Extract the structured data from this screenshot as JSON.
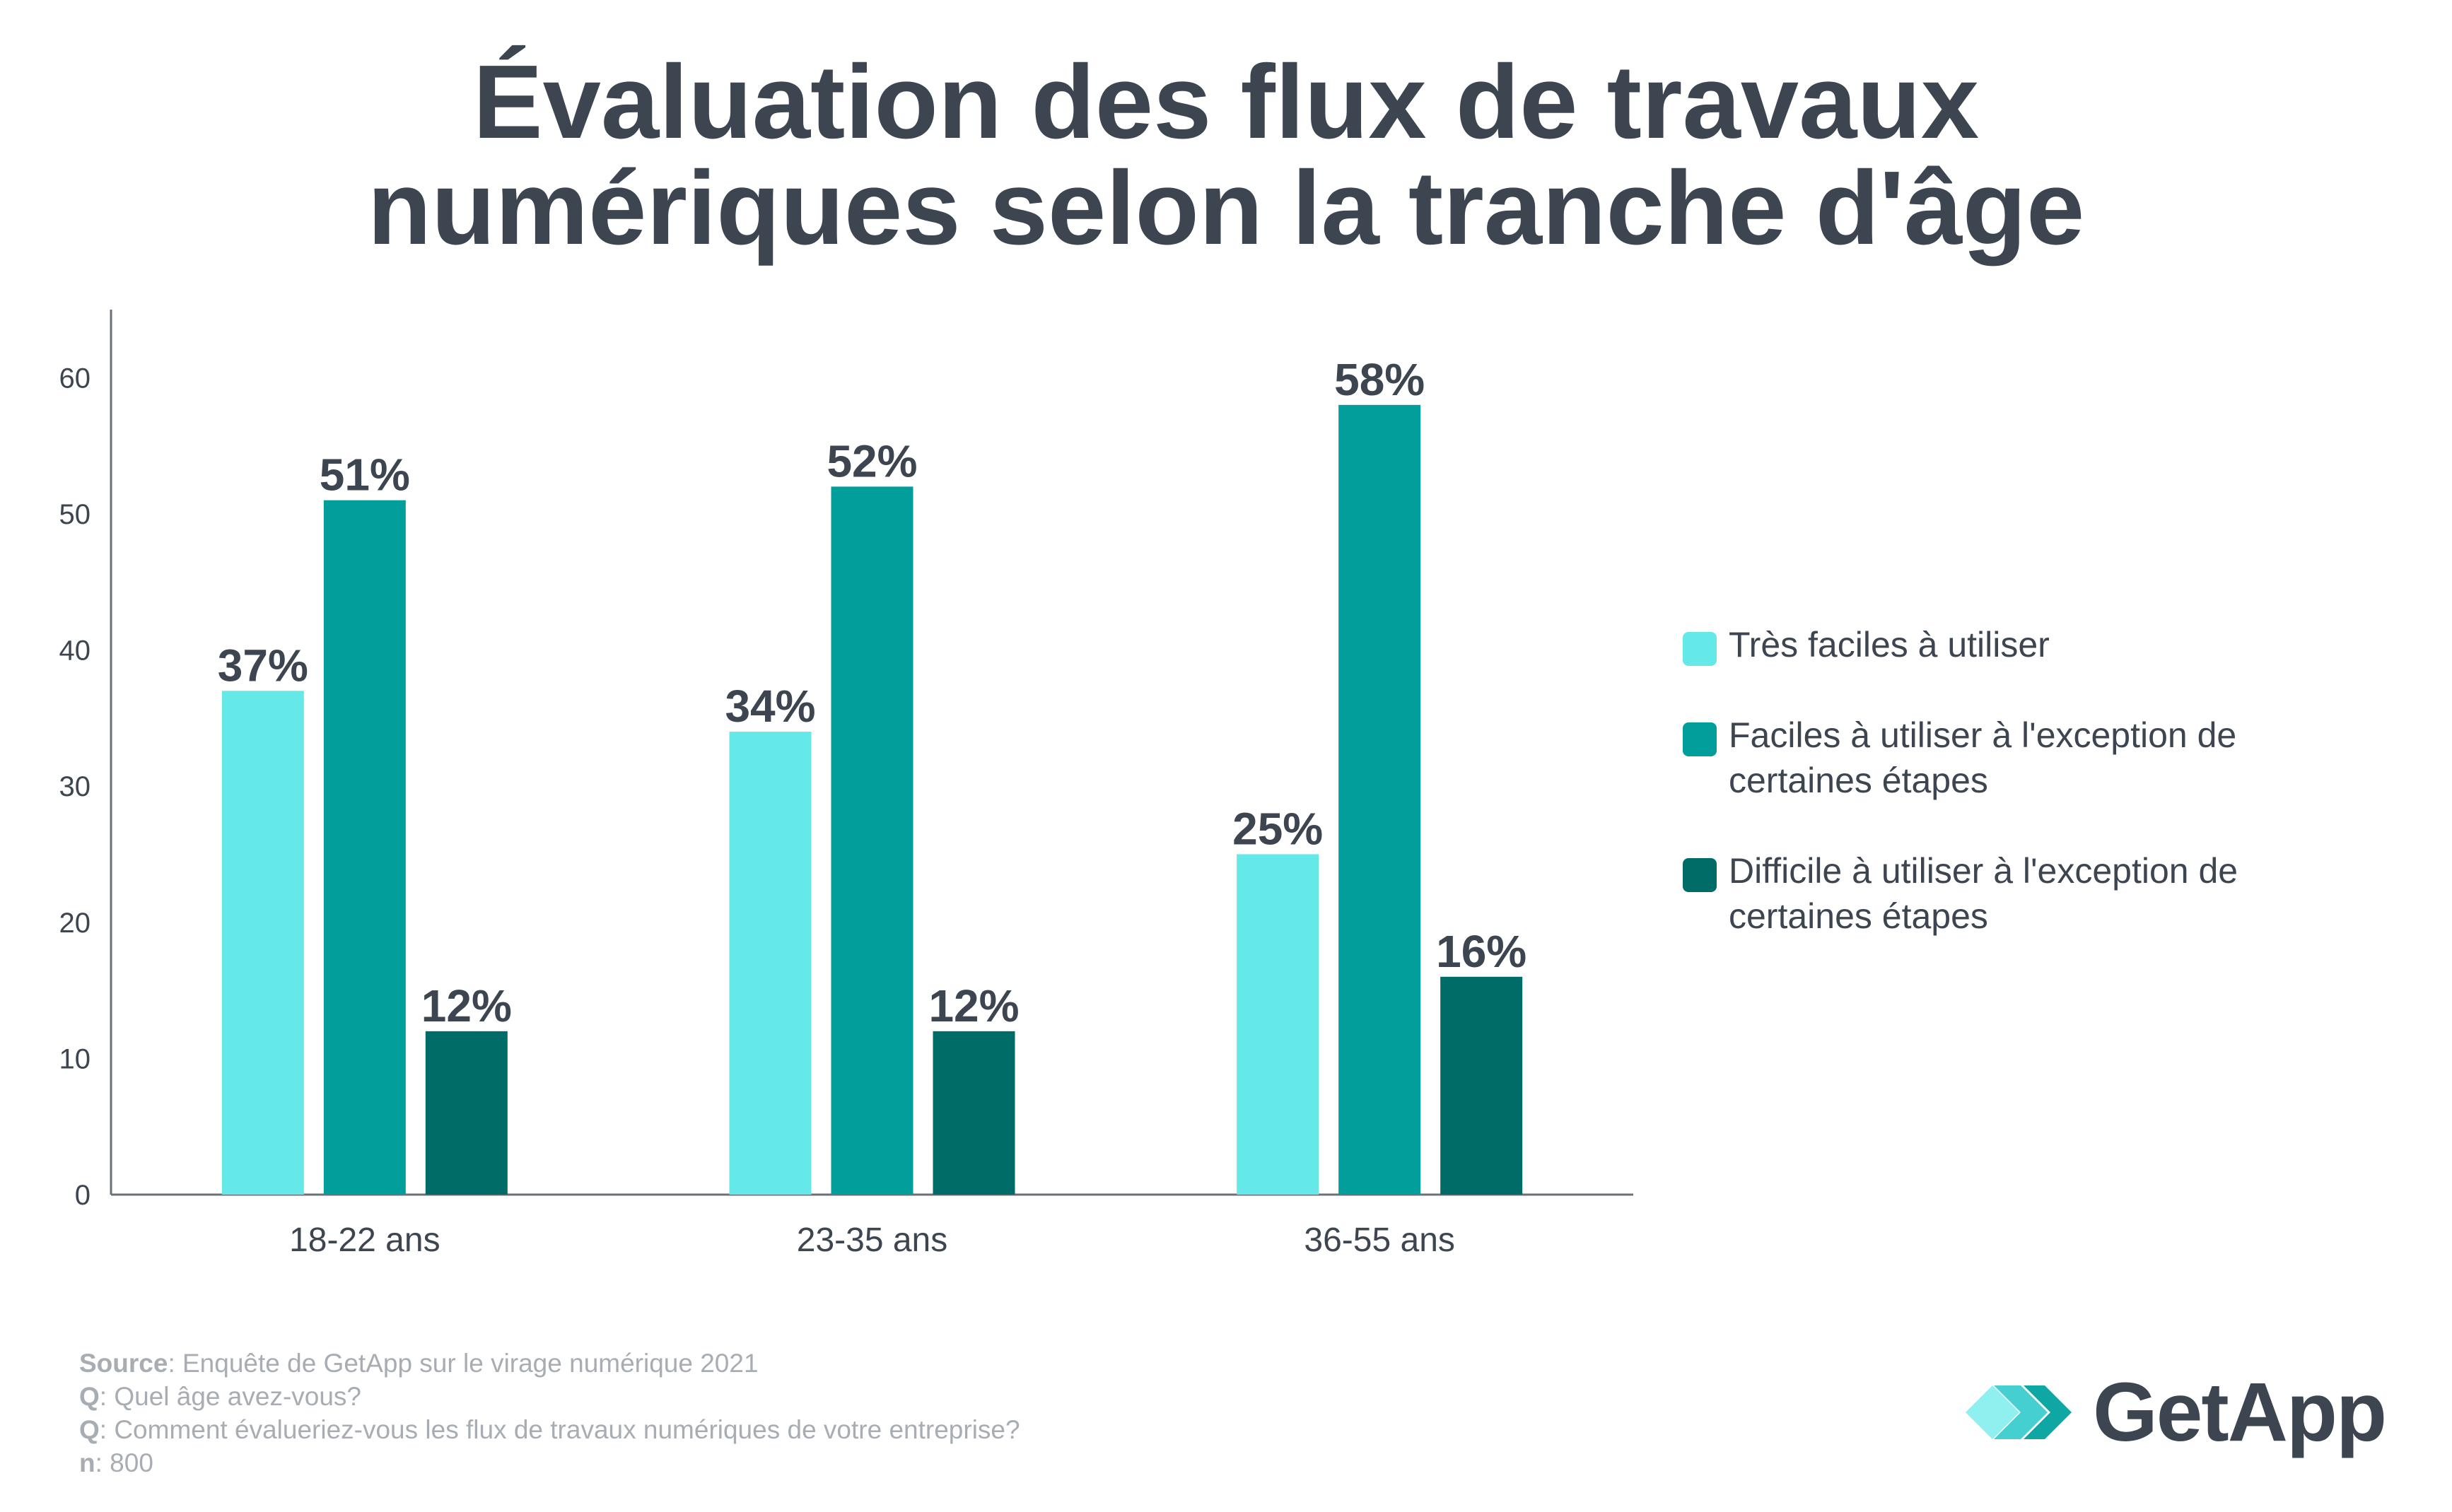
{
  "title": {
    "line1": "Évaluation des flux de travaux",
    "line2": "numériques selon la tranche d'âge"
  },
  "chart_data": {
    "type": "bar",
    "title": "Évaluation des flux de travaux numériques selon la tranche d'âge",
    "categories": [
      "18-22 ans",
      "23-35 ans",
      "36-55 ans"
    ],
    "series": [
      {
        "name": "Très faciles à utiliser",
        "values": [
          37,
          34,
          25
        ],
        "labels": [
          "37%",
          "34%",
          "25%"
        ],
        "color": "#64e8e8"
      },
      {
        "name": "Faciles à utiliser à l'exception de certaines étapes",
        "values": [
          51,
          52,
          58
        ],
        "labels": [
          "51%",
          "52%",
          "58%"
        ],
        "color": "#019e9b"
      },
      {
        "name": "Difficile à utiliser à l'exception de certaines étapes",
        "values": [
          12,
          12,
          16
        ],
        "labels": [
          "12%",
          "12%",
          "16%"
        ],
        "color": "#006c67"
      }
    ],
    "yticks": [
      0,
      10,
      20,
      30,
      40,
      50,
      60
    ],
    "ylim": [
      0,
      65
    ],
    "grid": false,
    "legend": "right"
  },
  "legend": [
    {
      "line1": "Très faciles à utiliser",
      "line2": "",
      "color": "#64e8e8"
    },
    {
      "line1": "Faciles à utiliser à l'exception de",
      "line2": "certaines étapes",
      "color": "#019e9b"
    },
    {
      "line1": "Difficile à utiliser à l'exception de",
      "line2": "certaines étapes",
      "color": "#006c67"
    }
  ],
  "footer": {
    "source_key": "Source",
    "source_text": ": Enquête de GetApp sur le virage numérique 2021",
    "q1_key": "Q",
    "q1_text": ": Quel âge avez-vous?",
    "q2_key": "Q",
    "q2_text": ": Comment évalueriez-vous les flux de travaux numériques de votre entreprise?",
    "n_key": "n",
    "n_text": ": 800"
  },
  "logo": {
    "text": "GetApp",
    "colors": [
      "#8ff0ef",
      "#45cfd0",
      "#0fa7a3"
    ]
  }
}
